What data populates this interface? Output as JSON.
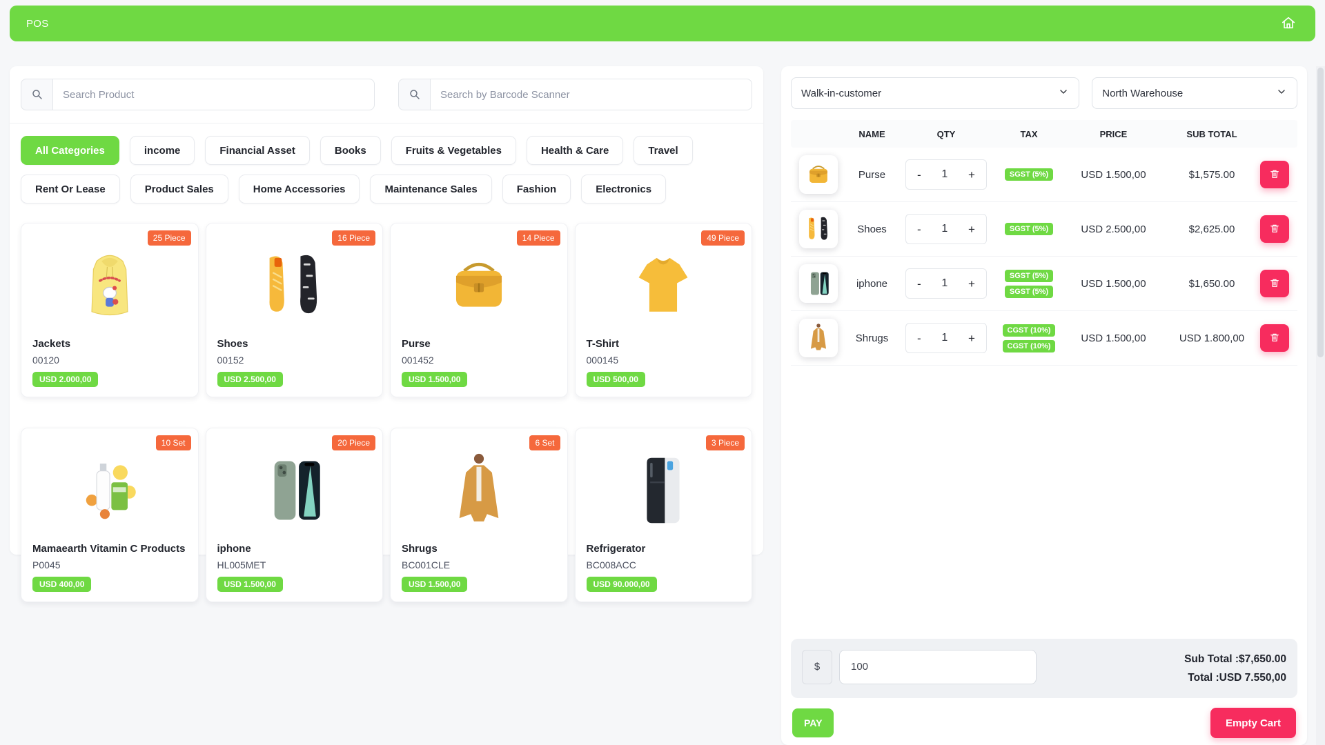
{
  "app": {
    "title": "POS"
  },
  "colors": {
    "accent_green": "#6fd943",
    "badge_orange": "#f5683c",
    "accent_pink": "#f72c5e"
  },
  "search": {
    "product_placeholder": "Search Product",
    "barcode_placeholder": "Search by Barcode Scanner"
  },
  "categories": {
    "items": [
      {
        "label": "All Categories",
        "active": true
      },
      {
        "label": "income",
        "active": false
      },
      {
        "label": "Financial Asset",
        "active": false
      },
      {
        "label": "Books",
        "active": false
      },
      {
        "label": "Fruits & Vegetables",
        "active": false
      },
      {
        "label": "Health & Care",
        "active": false
      },
      {
        "label": "Travel",
        "active": false
      },
      {
        "label": "Rent Or Lease",
        "active": false
      },
      {
        "label": "Product Sales",
        "active": false
      },
      {
        "label": "Home Accessories",
        "active": false
      },
      {
        "label": "Maintenance Sales",
        "active": false
      },
      {
        "label": "Fashion",
        "active": false
      },
      {
        "label": "Electronics",
        "active": false
      }
    ]
  },
  "products": [
    {
      "name": "Jackets",
      "code": "00120",
      "price": "USD 2.000,00",
      "stock": "25 Piece",
      "icon": "hoodie"
    },
    {
      "name": "Shoes",
      "code": "00152",
      "price": "USD 2.500,00",
      "stock": "16 Piece",
      "icon": "shoes"
    },
    {
      "name": "Purse",
      "code": "001452",
      "price": "USD 1.500,00",
      "stock": "14 Piece",
      "icon": "purse"
    },
    {
      "name": "T-Shirt",
      "code": "000145",
      "price": "USD 500,00",
      "stock": "49 Piece",
      "icon": "tshirt"
    },
    {
      "name": "Mamaearth Vitamin C Products",
      "code": "P0045",
      "price": "USD 400,00",
      "stock": "10 Set",
      "icon": "cosmetics"
    },
    {
      "name": "iphone",
      "code": "HL005MET",
      "price": "USD 1.500,00",
      "stock": "20 Piece",
      "icon": "phone"
    },
    {
      "name": "Shrugs",
      "code": "BC001CLE",
      "price": "USD 1.500,00",
      "stock": "6 Set",
      "icon": "dress"
    },
    {
      "name": "Refrigerator",
      "code": "BC008ACC",
      "price": "USD 90.000,00",
      "stock": "3 Piece",
      "icon": "fridge"
    }
  ],
  "pos_panel": {
    "customer": "Walk-in-customer",
    "warehouse": "North Warehouse",
    "columns": [
      "NAME",
      "QTY",
      "TAX",
      "PRICE",
      "SUB TOTAL"
    ],
    "cart": [
      {
        "name": "Purse",
        "qty": "1",
        "minus": "-",
        "plus": "+",
        "taxes": [
          "SGST (5%)"
        ],
        "price": "USD 1.500,00",
        "subtotal": "$1,575.00",
        "icon": "purse"
      },
      {
        "name": "Shoes",
        "qty": "1",
        "minus": "-",
        "plus": "+",
        "taxes": [
          "SGST (5%)"
        ],
        "price": "USD 2.500,00",
        "subtotal": "$2,625.00",
        "icon": "shoes"
      },
      {
        "name": "iphone",
        "qty": "1",
        "minus": "-",
        "plus": "+",
        "taxes": [
          "SGST (5%)",
          "SGST (5%)"
        ],
        "price": "USD 1.500,00",
        "subtotal": "$1,650.00",
        "icon": "phone"
      },
      {
        "name": "Shrugs",
        "qty": "1",
        "minus": "-",
        "plus": "+",
        "taxes": [
          "CGST (10%)",
          "CGST (10%)"
        ],
        "price": "USD 1.500,00",
        "subtotal": "USD 1.800,00",
        "icon": "dress"
      }
    ],
    "payment": {
      "currency": "$",
      "amount": "100",
      "subtotal_label": "Sub Total :",
      "subtotal_value": "$7,650.00",
      "total_label": "Total :",
      "total_value": "USD 7.550,00",
      "pay_label": "PAY",
      "empty_label": "Empty Cart"
    }
  }
}
